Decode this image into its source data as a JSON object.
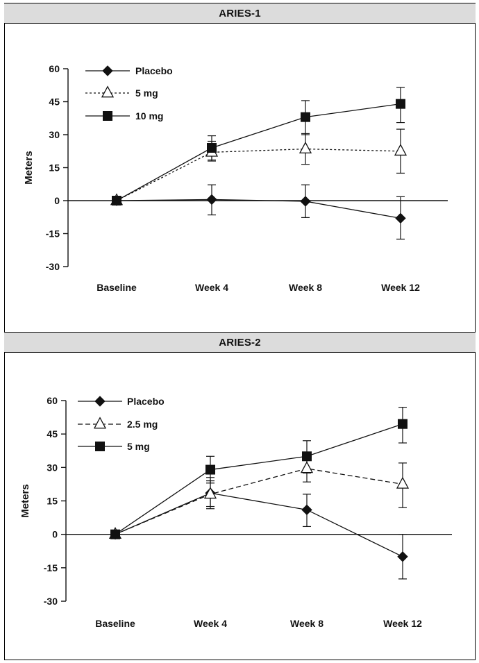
{
  "chart_data": [
    {
      "type": "line",
      "title": "ARIES-1",
      "ylabel": "Meters",
      "xlabel": "",
      "categories": [
        "Baseline",
        "Week 4",
        "Week 8",
        "Week 12"
      ],
      "yticks": [
        60,
        45,
        30,
        15,
        0,
        -15,
        -30
      ],
      "ylim": [
        -30,
        60
      ],
      "series": [
        {
          "name": "Placebo",
          "marker": "diamond",
          "line": "solid",
          "values": [
            0,
            0.5,
            -0.3,
            -8
          ],
          "err_low": [
            null,
            -6.5,
            -7.7,
            -17.5
          ],
          "err_high": [
            null,
            7.2,
            7.2,
            1.8
          ]
        },
        {
          "name": "5 mg",
          "marker": "triangle-open",
          "line": "dotted",
          "values": [
            0,
            22,
            23.5,
            22.5
          ],
          "err_low": [
            null,
            18,
            16.5,
            12.5
          ],
          "err_high": [
            null,
            27,
            30.5,
            32.5
          ]
        },
        {
          "name": "10 mg",
          "marker": "square",
          "line": "solid",
          "values": [
            0,
            24,
            38,
            44
          ],
          "err_low": [
            null,
            18.5,
            30,
            35.5
          ],
          "err_high": [
            null,
            29.5,
            45.5,
            51.5
          ]
        }
      ]
    },
    {
      "type": "line",
      "title": "ARIES-2",
      "ylabel": "Meters",
      "xlabel": "",
      "categories": [
        "Baseline",
        "Week 4",
        "Week 8",
        "Week 12"
      ],
      "yticks": [
        60,
        45,
        30,
        15,
        0,
        -15,
        -30
      ],
      "ylim": [
        -30,
        60
      ],
      "series": [
        {
          "name": "Placebo",
          "marker": "diamond",
          "line": "solid",
          "values": [
            0,
            18.5,
            11,
            -10
          ],
          "err_low": [
            null,
            11.5,
            3.5,
            -20
          ],
          "err_high": [
            null,
            25.5,
            18,
            0
          ]
        },
        {
          "name": "2.5 mg",
          "marker": "triangle-open",
          "line": "dashed",
          "values": [
            0,
            18,
            29.5,
            22.5
          ],
          "err_low": [
            null,
            12.5,
            23.5,
            12
          ],
          "err_high": [
            null,
            24,
            36,
            32
          ]
        },
        {
          "name": "5 mg",
          "marker": "square",
          "line": "solid",
          "values": [
            0,
            29,
            35,
            49.5
          ],
          "err_low": [
            null,
            23,
            27.5,
            41
          ],
          "err_high": [
            null,
            35,
            42,
            57
          ]
        }
      ]
    }
  ]
}
